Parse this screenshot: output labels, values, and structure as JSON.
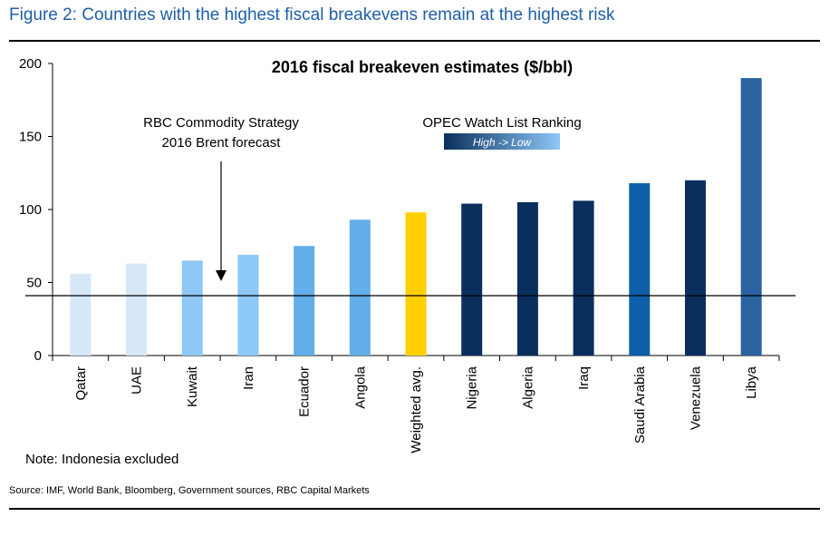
{
  "figure_title": "Figure 2: Countries with the highest fiscal breakevens remain at the highest risk",
  "note": "Note: Indonesia excluded",
  "source": "Source: IMF, World Bank, Bloomberg, Government sources, RBC Capital Markets",
  "chart_data": {
    "type": "bar",
    "title": "2016 fiscal breakeven estimates ($/bbl)",
    "categories": [
      "Qatar",
      "UAE",
      "Kuwait",
      "Iran",
      "Ecuador",
      "Angola",
      "Weighted avg.",
      "Nigeria",
      "Algeria",
      "Iraq",
      "Saudi Arabia",
      "Venezuela",
      "Libya"
    ],
    "values": [
      56,
      63,
      65,
      69,
      75,
      93,
      98,
      104,
      105,
      106,
      118,
      120,
      190
    ],
    "colors": [
      "#d6e8f8",
      "#d6e8f8",
      "#8dc8f7",
      "#8dc8f7",
      "#62aee9",
      "#62aee9",
      "#ffd000",
      "#0a2f5c",
      "#0a2f5c",
      "#0a2f5c",
      "#0f5fa8",
      "#0a2f5c",
      "#2a63a0"
    ],
    "ylim": [
      0,
      200
    ],
    "yticks": [
      0,
      50,
      100,
      150,
      200
    ],
    "reference_line": {
      "value": 41,
      "label_lines": [
        "RBC Commodity Strategy",
        "2016 Brent forecast"
      ]
    },
    "legend": {
      "title": "OPEC Watch List Ranking",
      "gradient_label": "High -> Low",
      "gradient_colors": [
        "#0a2f5c",
        "#8dc8f7"
      ]
    },
    "xlabel": "",
    "ylabel": ""
  }
}
